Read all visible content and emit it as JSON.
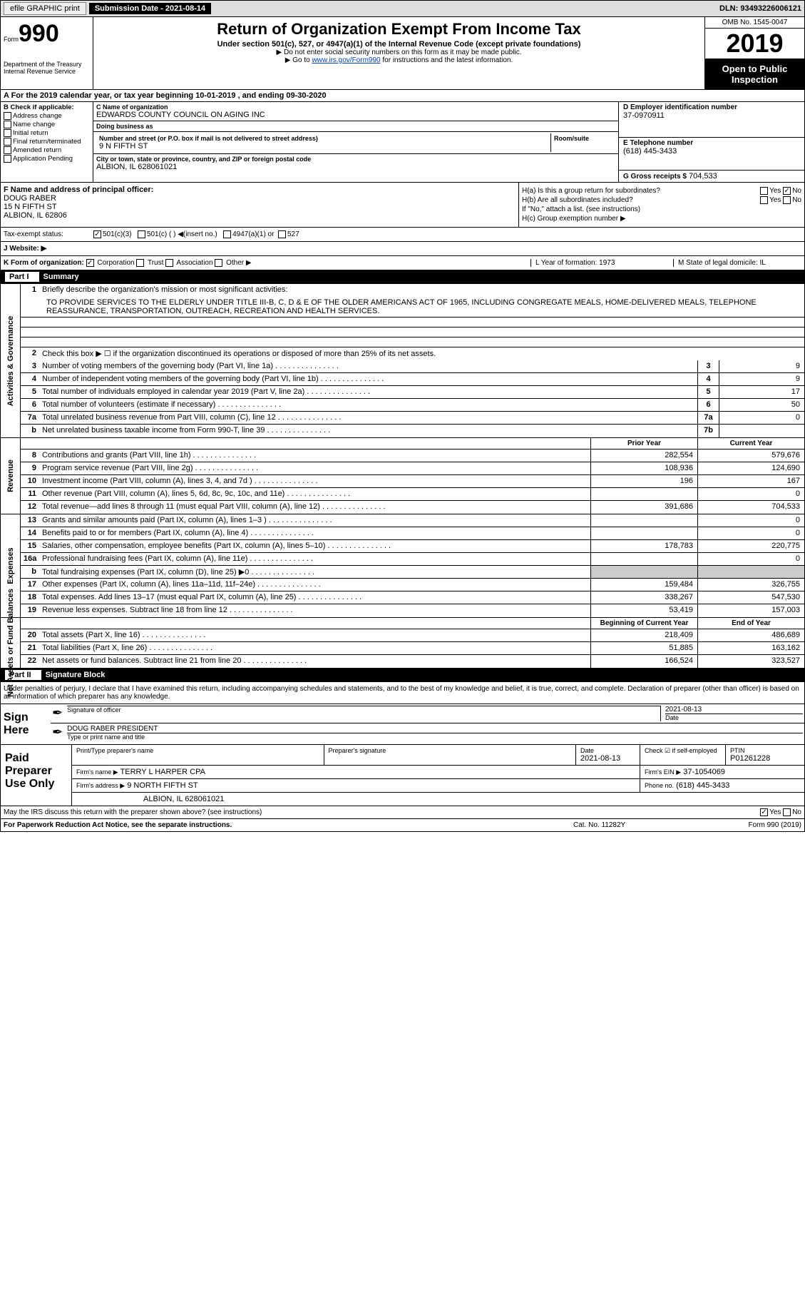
{
  "topbar": {
    "efile": "efile GRAPHIC print",
    "submission_label": "Submission Date - 2021-08-14",
    "dln": "DLN: 93493226006121"
  },
  "header": {
    "form_word": "Form",
    "form_no": "990",
    "title": "Return of Organization Exempt From Income Tax",
    "sub1": "Under section 501(c), 527, or 4947(a)(1) of the Internal Revenue Code (except private foundations)",
    "sub2a": "▶ Do not enter social security numbers on this form as it may be made public.",
    "sub2b_pre": "▶ Go to ",
    "sub2b_link": "www.irs.gov/Form990",
    "sub2b_post": " for instructions and the latest information.",
    "omb": "OMB No. 1545-0047",
    "year": "2019",
    "inspection": "Open to Public Inspection",
    "dept": "Department of the Treasury\nInternal Revenue Service"
  },
  "period": "A For the 2019 calendar year, or tax year beginning 10-01-2019     , and ending 09-30-2020",
  "boxB": {
    "label": "B Check if applicable:",
    "items": [
      "Address change",
      "Name change",
      "Initial return",
      "Final return/terminated",
      "Amended return",
      "Application Pending"
    ]
  },
  "boxC": {
    "name_label": "C Name of organization",
    "name": "EDWARDS COUNTY COUNCIL ON AGING INC",
    "dba_label": "Doing business as",
    "dba": "",
    "addr_label": "Number and street (or P.O. box if mail is not delivered to street address)",
    "room_label": "Room/suite",
    "addr": "9 N FIFTH ST",
    "city_label": "City or town, state or province, country, and ZIP or foreign postal code",
    "city": "ALBION, IL  628061021"
  },
  "boxD": {
    "ein_label": "D Employer identification number",
    "ein": "37-0970911",
    "tel_label": "E Telephone number",
    "tel": "(618) 445-3433",
    "gross_label": "G Gross receipts $",
    "gross": "704,533"
  },
  "boxF": {
    "label": "F  Name and address of principal officer:",
    "name": "DOUG RABER",
    "addr1": "15 N FIFTH ST",
    "addr2": "ALBION, IL  62806"
  },
  "boxH": {
    "ha": "H(a)  Is this a group return for subordinates?",
    "hb": "H(b)  Are all subordinates included?",
    "hb_note": "If \"No,\" attach a list. (see instructions)",
    "hc": "H(c)  Group exemption number ▶"
  },
  "taxexempt": "Tax-exempt status:",
  "website": "J    Website: ▶",
  "boxK": {
    "label": "K Form of organization:",
    "l_label": "L Year of formation: 1973",
    "m_label": "M State of legal domicile: IL"
  },
  "part1": {
    "hdr": "Summary",
    "q1": "Briefly describe the organization's mission or most significant activities:",
    "mission": "TO PROVIDE SERVICES TO THE ELDERLY UNDER TITLE III-B, C, D & E OF THE OLDER AMERICANS ACT OF 1965, INCLUDING CONGREGATE MEALS, HOME-DELIVERED MEALS, TELEPHONE REASSURANCE, TRANSPORTATION, OUTREACH, RECREATION AND HEALTH SERVICES.",
    "q2": "Check this box ▶ ☐  if the organization discontinued its operations or disposed of more than 25% of its net assets.",
    "sections": {
      "activities": "Activities & Governance",
      "revenue": "Revenue",
      "expenses": "Expenses",
      "netassets": "Net Assets or Fund Balances"
    },
    "lines_ag": [
      {
        "n": "3",
        "t": "Number of voting members of the governing body (Part VI, line 1a)",
        "box": "3",
        "v": "9"
      },
      {
        "n": "4",
        "t": "Number of independent voting members of the governing body (Part VI, line 1b)",
        "box": "4",
        "v": "9"
      },
      {
        "n": "5",
        "t": "Total number of individuals employed in calendar year 2019 (Part V, line 2a)",
        "box": "5",
        "v": "17"
      },
      {
        "n": "6",
        "t": "Total number of volunteers (estimate if necessary)",
        "box": "6",
        "v": "50"
      },
      {
        "n": "7a",
        "t": "Total unrelated business revenue from Part VIII, column (C), line 12",
        "box": "7a",
        "v": "0"
      },
      {
        "n": "b",
        "t": "Net unrelated business taxable income from Form 990-T, line 39",
        "box": "7b",
        "v": ""
      }
    ],
    "col_py": "Prior Year",
    "col_cy": "Current Year",
    "lines_rev": [
      {
        "n": "8",
        "t": "Contributions and grants (Part VIII, line 1h)",
        "py": "282,554",
        "cy": "579,676"
      },
      {
        "n": "9",
        "t": "Program service revenue (Part VIII, line 2g)",
        "py": "108,936",
        "cy": "124,690"
      },
      {
        "n": "10",
        "t": "Investment income (Part VIII, column (A), lines 3, 4, and 7d )",
        "py": "196",
        "cy": "167"
      },
      {
        "n": "11",
        "t": "Other revenue (Part VIII, column (A), lines 5, 6d, 8c, 9c, 10c, and 11e)",
        "py": "",
        "cy": "0"
      },
      {
        "n": "12",
        "t": "Total revenue—add lines 8 through 11 (must equal Part VIII, column (A), line 12)",
        "py": "391,686",
        "cy": "704,533"
      }
    ],
    "lines_exp": [
      {
        "n": "13",
        "t": "Grants and similar amounts paid (Part IX, column (A), lines 1–3 )",
        "py": "",
        "cy": "0"
      },
      {
        "n": "14",
        "t": "Benefits paid to or for members (Part IX, column (A), line 4)",
        "py": "",
        "cy": "0"
      },
      {
        "n": "15",
        "t": "Salaries, other compensation, employee benefits (Part IX, column (A), lines 5–10)",
        "py": "178,783",
        "cy": "220,775"
      },
      {
        "n": "16a",
        "t": "Professional fundraising fees (Part IX, column (A), line 11e)",
        "py": "",
        "cy": "0"
      },
      {
        "n": "b",
        "t": "Total fundraising expenses (Part IX, column (D), line 25) ▶0",
        "py": "shade",
        "cy": "shade"
      },
      {
        "n": "17",
        "t": "Other expenses (Part IX, column (A), lines 11a–11d, 11f–24e)",
        "py": "159,484",
        "cy": "326,755"
      },
      {
        "n": "18",
        "t": "Total expenses. Add lines 13–17 (must equal Part IX, column (A), line 25)",
        "py": "338,267",
        "cy": "547,530"
      },
      {
        "n": "19",
        "t": "Revenue less expenses. Subtract line 18 from line 12",
        "py": "53,419",
        "cy": "157,003"
      }
    ],
    "col_boy": "Beginning of Current Year",
    "col_eoy": "End of Year",
    "lines_na": [
      {
        "n": "20",
        "t": "Total assets (Part X, line 16)",
        "py": "218,409",
        "cy": "486,689"
      },
      {
        "n": "21",
        "t": "Total liabilities (Part X, line 26)",
        "py": "51,885",
        "cy": "163,162"
      },
      {
        "n": "22",
        "t": "Net assets or fund balances. Subtract line 21 from line 20",
        "py": "166,524",
        "cy": "323,527"
      }
    ]
  },
  "part2": {
    "hdr": "Signature Block",
    "decl": "Under penalties of perjury, I declare that I have examined this return, including accompanying schedules and statements, and to the best of my knowledge and belief, it is true, correct, and complete. Declaration of preparer (other than officer) is based on all information of which preparer has any knowledge.",
    "sign_here": "Sign Here",
    "sig_label": "Signature of officer",
    "date_label": "Date",
    "date": "2021-08-13",
    "name_label": "Type or print name and title",
    "name": "DOUG RABER  PRESIDENT"
  },
  "paid": {
    "label": "Paid Preparer Use Only",
    "r1": {
      "a": "Print/Type preparer's name",
      "b": "Preparer's signature",
      "c": "Date",
      "cval": "2021-08-13",
      "d": "Check ☑ if self-employed",
      "e": "PTIN",
      "eval": "P01261228"
    },
    "r2": {
      "a": "Firm's name      ▶",
      "aval": "TERRY L HARPER CPA",
      "b": "Firm's EIN ▶",
      "bval": "37-1054069"
    },
    "r3": {
      "a": "Firm's address ▶",
      "aval": "9 NORTH FIFTH ST",
      "b": "Phone no.",
      "bval": "(618) 445-3433"
    },
    "r4": {
      "a": "",
      "aval": "ALBION, IL  628061021"
    }
  },
  "irs_discuss": "May the IRS discuss this return with the preparer shown above? (see instructions)",
  "footer": {
    "f1": "For Paperwork Reduction Act Notice, see the separate instructions.",
    "f2": "Cat. No. 11282Y",
    "f3": "Form 990 (2019)"
  }
}
